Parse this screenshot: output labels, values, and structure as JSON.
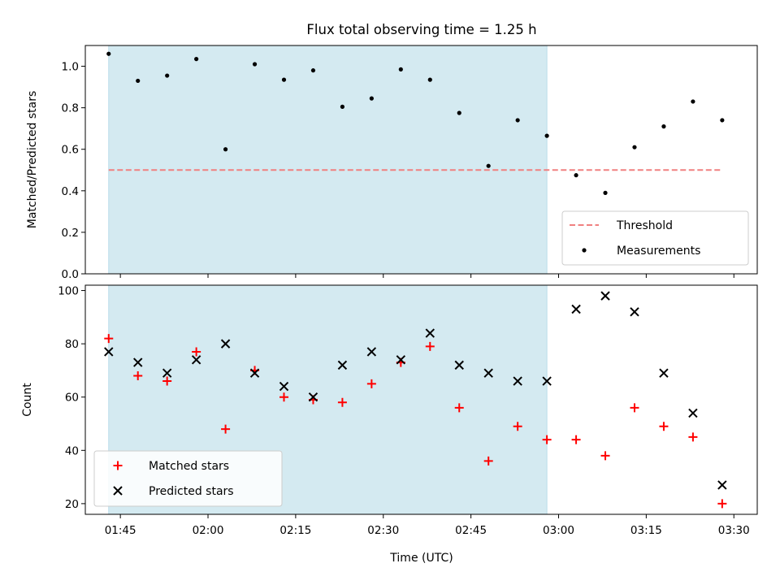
{
  "chart_data": [
    {
      "type": "scatter",
      "title": "Flux total observing time = 1.25 h",
      "ylabel": "Matched/Predicted stars",
      "xlabel": "",
      "ylim": [
        0,
        1.1
      ],
      "yticks": [
        "0.0",
        "0.2",
        "0.4",
        "0.6",
        "0.8",
        "1.0"
      ],
      "x": [
        "01:43",
        "01:48",
        "01:53",
        "01:58",
        "02:03",
        "02:08",
        "02:13",
        "02:18",
        "02:23",
        "02:28",
        "02:33",
        "02:38",
        "02:43",
        "02:48",
        "02:53",
        "02:58",
        "03:03",
        "03:08",
        "03:13",
        "03:18",
        "03:23",
        "03:28"
      ],
      "series": [
        {
          "name": "Measurements",
          "color": "#000000",
          "values": [
            1.06,
            0.93,
            0.955,
            1.035,
            0.6,
            1.01,
            0.935,
            0.98,
            0.805,
            0.845,
            0.985,
            0.935,
            0.775,
            0.52,
            0.74,
            0.665,
            0.475,
            0.39,
            0.61,
            0.71,
            0.83,
            0.74
          ]
        }
      ],
      "threshold": {
        "name": "Threshold",
        "value": 0.5,
        "color": "#f08080",
        "x_start": "01:43",
        "x_end": "03:28"
      },
      "shaded_span": {
        "start": "01:43",
        "end": "02:58",
        "color": "#d4eaf1"
      },
      "legend": "lower right",
      "grid": false
    },
    {
      "type": "scatter",
      "xlabel": "Time (UTC)",
      "ylabel": "Count",
      "ylim": [
        16,
        102
      ],
      "yticks": [
        "20",
        "40",
        "60",
        "80",
        "100"
      ],
      "xticks": [
        "01:45",
        "02:00",
        "02:15",
        "02:30",
        "02:45",
        "03:00",
        "03:15",
        "03:30"
      ],
      "x": [
        "01:43",
        "01:48",
        "01:53",
        "01:58",
        "02:03",
        "02:08",
        "02:13",
        "02:18",
        "02:23",
        "02:28",
        "02:33",
        "02:38",
        "02:43",
        "02:48",
        "02:53",
        "02:58",
        "03:03",
        "03:08",
        "03:13",
        "03:18",
        "03:23",
        "03:28"
      ],
      "series": [
        {
          "name": "Matched stars",
          "color": "#ff0000",
          "marker": "+",
          "values": [
            82,
            68,
            66,
            77,
            48,
            70,
            60,
            59,
            58,
            65,
            73,
            79,
            56,
            36,
            49,
            44,
            44,
            38,
            56,
            49,
            45,
            20
          ]
        },
        {
          "name": "Predicted stars",
          "color": "#000000",
          "marker": "x",
          "values": [
            77,
            73,
            69,
            74,
            80,
            69,
            64,
            60,
            72,
            77,
            74,
            84,
            72,
            69,
            66,
            66,
            93,
            98,
            92,
            69,
            54,
            27
          ]
        }
      ],
      "shaded_span": {
        "start": "01:43",
        "end": "02:58",
        "color": "#d4eaf1"
      },
      "legend": "lower left",
      "grid": false
    }
  ]
}
